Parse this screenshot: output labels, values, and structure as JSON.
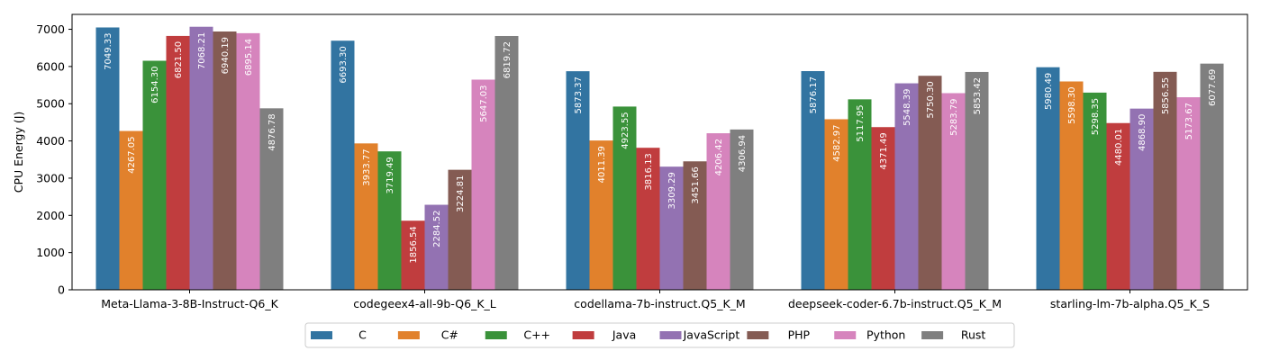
{
  "chart_data": {
    "type": "bar",
    "ylabel": "CPU Energy (J)",
    "xlabel": "",
    "ylim": [
      0,
      7400
    ],
    "yticks": [
      0,
      1000,
      2000,
      3000,
      4000,
      5000,
      6000,
      7000
    ],
    "grid": false,
    "legend_position": "bottom-center",
    "categories": [
      "Meta-Llama-3-8B-Instruct-Q6_K",
      "codegeex4-all-9b-Q6_K_L",
      "codellama-7b-instruct.Q5_K_M",
      "deepseek-coder-6.7b-instruct.Q5_K_M",
      "starling-lm-7b-alpha.Q5_K_S"
    ],
    "series": [
      {
        "name": "C",
        "color": "#3274a1",
        "values": [
          7049.33,
          6693.3,
          5873.37,
          5876.17,
          5980.49
        ],
        "labels": [
          "7049.33",
          "6693.30",
          "5873.37",
          "5876.17",
          "5980.49"
        ]
      },
      {
        "name": "C#",
        "color": "#e1812c",
        "values": [
          4267.05,
          3933.77,
          4011.39,
          4582.97,
          5598.3
        ],
        "labels": [
          "4267.05",
          "3933.77",
          "4011.39",
          "4582.97",
          "5598.30"
        ]
      },
      {
        "name": "C++",
        "color": "#3a923a",
        "values": [
          6154.3,
          3719.49,
          4923.55,
          5117.95,
          5298.35
        ],
        "labels": [
          "6154.30",
          "3719.49",
          "4923.55",
          "5117.95",
          "5298.35"
        ]
      },
      {
        "name": "Java",
        "color": "#c03d3e",
        "values": [
          6821.5,
          1856.54,
          3816.13,
          4371.49,
          4480.01
        ],
        "labels": [
          "6821.50",
          "1856.54",
          "3816.13",
          "4371.49",
          "4480.01"
        ]
      },
      {
        "name": "JavaScript",
        "color": "#9372b2",
        "values": [
          7068.21,
          2284.52,
          3309.29,
          5548.39,
          4868.9
        ],
        "labels": [
          "7068.21",
          "2284.52",
          "3309.29",
          "5548.39",
          "4868.90"
        ]
      },
      {
        "name": "PHP",
        "color": "#845b53",
        "values": [
          6940.19,
          3224.81,
          3451.66,
          5750.3,
          5856.55
        ],
        "labels": [
          "6940.19",
          "3224.81",
          "3451.66",
          "5750.30",
          "5856.55"
        ]
      },
      {
        "name": "Python",
        "color": "#d684bd",
        "values": [
          6895.14,
          5647.03,
          4206.42,
          5283.79,
          5173.67
        ],
        "labels": [
          "6895.14",
          "5647.03",
          "4206.42",
          "5283.79",
          "5173.67"
        ]
      },
      {
        "name": "Rust",
        "color": "#7f7f7f",
        "values": [
          4876.78,
          6819.72,
          4306.94,
          5853.42,
          6077.69
        ],
        "labels": [
          "4876.78",
          "6819.72",
          "4306.94",
          "5853.42",
          "6077.69"
        ]
      }
    ]
  }
}
